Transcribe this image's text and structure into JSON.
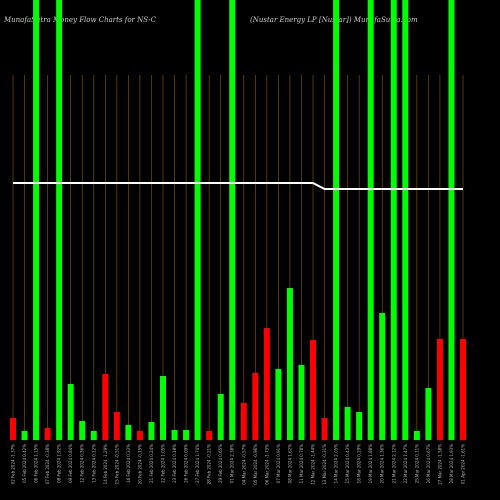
{
  "chart_data": {
    "type": "bar",
    "title": "MunafaSutra  Money Flow  Charts for NS-C",
    "subtitle": "(Nustar Energy LP [Nustar]) MunafaSutra.com",
    "categories": [
      "02 Feb 2024 -1.37%",
      "05 Feb 2024 0.42%",
      "06 Feb 2024 1.15%",
      "07 Feb 2024 -0.38%",
      "08 Feb 2024 1.92%",
      "09 Feb 2024 0.84%",
      "12 Feb 2024 0.36%",
      "13 Feb 2024 0.12%",
      "14 Feb 2024 -1.29%",
      "15 Feb 2024 -0.51%",
      "16 Feb 2024 0.33%",
      "20 Feb 2024 -0.15%",
      "21 Feb 2024 0.24%",
      "22 Feb 2024 1.05%",
      "23 Feb 2024 0.18%",
      "26 Feb 2024 0.09%",
      "27 Feb 2024 1.74%",
      "28 Feb 2024 -0.21%",
      "29 Feb 2024 0.65%",
      "01 Mar 2024 2.38%",
      "04 Mar 2024 -0.57%",
      "05 Mar 2024 -0.96%",
      "06 Mar 2024 -1.73%",
      "07 Mar 2024 0.91%",
      "08 Mar 2024 1.62%",
      "11 Mar 2024 0.78%",
      "12 Mar 2024 -1.44%",
      "13 Mar 2024 -0.31%",
      "14 Mar 2024 2.05%",
      "15 Mar 2024 0.43%",
      "18 Mar 2024 0.29%",
      "19 Mar 2024 1.88%",
      "20 Mar 2024 1.36%",
      "21 Mar 2024 2.12%",
      "22 Mar 2024 1.47%",
      "25 Mar 2024 0.11%",
      "26 Mar 2024 0.67%",
      "27 Mar 2024 -1.58%",
      "28 Mar 2024 1.93%",
      "01 Apr 2024 -1.61%"
    ],
    "values": [
      22,
      9,
      440,
      12,
      440,
      56,
      19,
      9,
      66,
      28,
      15,
      9,
      18,
      64,
      10,
      10,
      440,
      9,
      46,
      440,
      37,
      67,
      112,
      71,
      152,
      75,
      100,
      22,
      440,
      33,
      28,
      440,
      127,
      440,
      440,
      9,
      52,
      101,
      440,
      101
    ],
    "colors": [
      "#ff0000",
      "#00ff00",
      "#00ff00",
      "#ff0000",
      "#00ff00",
      "#00ff00",
      "#00ff00",
      "#00ff00",
      "#ff0000",
      "#ff0000",
      "#00ff00",
      "#ff0000",
      "#00ff00",
      "#00ff00",
      "#00ff00",
      "#00ff00",
      "#00ff00",
      "#ff0000",
      "#00ff00",
      "#00ff00",
      "#ff0000",
      "#ff0000",
      "#ff0000",
      "#00ff00",
      "#00ff00",
      "#00ff00",
      "#ff0000",
      "#ff0000",
      "#00ff00",
      "#00ff00",
      "#00ff00",
      "#00ff00",
      "#00ff00",
      "#00ff00",
      "#00ff00",
      "#00ff00",
      "#00ff00",
      "#ff0000",
      "#00ff00",
      "#ff0000"
    ],
    "line": {
      "color": "#ffffff",
      "values": [
        257,
        257,
        257,
        257,
        257,
        257,
        257,
        257,
        257,
        257,
        257,
        257,
        257,
        257,
        257,
        257,
        257,
        257,
        257,
        257,
        257,
        257,
        257,
        257,
        257,
        257,
        257,
        251,
        251,
        251,
        251,
        251,
        251,
        251,
        251,
        251,
        251,
        251,
        251,
        251
      ]
    },
    "ylim": [
      0,
      440
    ]
  }
}
